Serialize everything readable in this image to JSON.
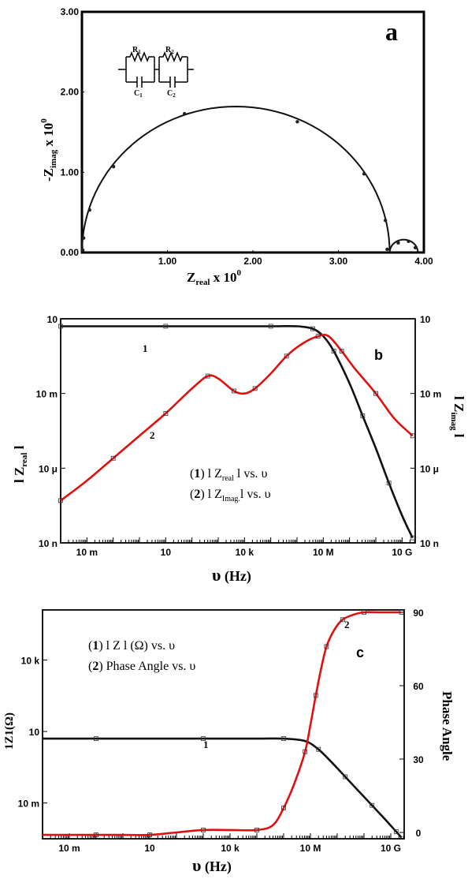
{
  "colors": {
    "curve1": "#111111",
    "curve2": "#e01010",
    "frame": "#000000",
    "markers": "#222222"
  },
  "chart_data": [
    {
      "panel_label": "a",
      "type": "scatter",
      "xlabel_main": "Z",
      "xlabel_sub": "real",
      "xlabel_rest": " x 10",
      "xlabel_sup": "0",
      "ylabel_main": "-Z",
      "ylabel_sub": "imag",
      "ylabel_rest": " x 10",
      "ylabel_sup": "0",
      "xlim": [
        0,
        4.0
      ],
      "ylim": [
        0,
        3.0
      ],
      "x_ticks": [
        "1.00",
        "2.00",
        "3.00",
        "4.00"
      ],
      "x_tick_values": [
        1,
        2,
        3,
        4
      ],
      "y_ticks": [
        "0.00",
        "1.00",
        "2.00",
        "3.00"
      ],
      "y_tick_values": [
        0,
        1,
        2,
        3
      ],
      "circuit_labels": [
        "R",
        "1",
        "R",
        "2",
        "C",
        "1",
        "C",
        "2"
      ],
      "arc1": {
        "x_start": 0.0,
        "x_end": 3.6,
        "peak": 1.82
      },
      "arc2": {
        "x_start": 3.6,
        "x_end": 3.93,
        "peak": 0.16
      },
      "points": [
        [
          0.01,
          0.03
        ],
        [
          0.02,
          0.18
        ],
        [
          0.09,
          0.53
        ],
        [
          0.37,
          1.07
        ],
        [
          1.2,
          1.73
        ],
        [
          2.52,
          1.63
        ],
        [
          3.3,
          0.98
        ],
        [
          3.55,
          0.4
        ],
        [
          3.57,
          0.04
        ],
        [
          3.7,
          0.12
        ],
        [
          3.82,
          0.14
        ],
        [
          3.9,
          0.06
        ]
      ]
    },
    {
      "panel_label": "b",
      "type": "line",
      "ylabel_left_main": "l Z",
      "ylabel_left_sub": "real",
      "ylabel_left_rest": " l",
      "ylabel_right_main": "l Z",
      "ylabel_right_sub": "imag",
      "ylabel_right_rest": " l",
      "xlabel_sym": "υ",
      "xlabel_rest": " (Hz)",
      "x_log_range": [
        -3,
        10.5
      ],
      "y_log_range": [
        -8,
        1
      ],
      "x_ticks": [
        "10 m",
        "10",
        "10 k",
        "10 M",
        "10 G"
      ],
      "x_tick_values": [
        -2,
        1,
        4,
        7,
        10
      ],
      "y_ticks": [
        "10",
        "10 m",
        "10 μ",
        "10 n"
      ],
      "y_tick_values": [
        1,
        -2,
        -5,
        -8
      ],
      "y_ticks_right": [
        "10",
        "10 m",
        "10 μ",
        "10 n"
      ],
      "legend": [
        {
          "num": "1",
          "pre": ") l Z",
          "sub": "real",
          "post": " l  vs.  υ"
        },
        {
          "num": "2",
          "pre": ") l Z",
          "sub": "Imag.",
          "post": "l  vs.  υ"
        }
      ],
      "curve_labels": [
        "1",
        "2"
      ],
      "series": [
        {
          "name": "1",
          "color": "#111111",
          "x": [
            -3,
            -1,
            1,
            3,
            5,
            6,
            6.6,
            7.0,
            7.4,
            8.0,
            8.5,
            9.0,
            9.5,
            10.0,
            10.4
          ],
          "y": [
            0.7,
            0.7,
            0.7,
            0.7,
            0.7,
            0.7,
            0.6,
            0.3,
            -0.3,
            -1.6,
            -2.9,
            -4.2,
            -5.6,
            -6.9,
            -7.8
          ]
        },
        {
          "name": "2",
          "color": "#e01010",
          "x": [
            -3,
            -2,
            -1,
            0,
            1,
            2,
            2.6,
            3.0,
            3.6,
            4.0,
            4.4,
            5.0,
            5.6,
            6.2,
            6.8,
            7.2,
            7.7,
            8.2,
            9.0,
            9.7,
            10.4
          ],
          "y": [
            -6.3,
            -5.5,
            -4.6,
            -3.7,
            -2.8,
            -1.8,
            -1.3,
            -1.4,
            -1.9,
            -2.0,
            -1.8,
            -1.2,
            -0.5,
            0.0,
            0.3,
            0.3,
            -0.3,
            -1.0,
            -2.0,
            -3.0,
            -3.7
          ]
        }
      ]
    },
    {
      "panel_label": "c",
      "type": "line",
      "ylabel_left": "1Z1(Ω)",
      "ylabel_right": "Phase Angle",
      "xlabel_sym": "υ",
      "xlabel_rest": " (Hz)",
      "x_log_range": [
        -3,
        10.5
      ],
      "y_left_log_range": [
        -3.5,
        6.1
      ],
      "y_right_range": [
        0,
        90
      ],
      "x_ticks": [
        "10 m",
        "10",
        "10 k",
        "10 M",
        "10 G"
      ],
      "x_tick_values": [
        -2,
        1,
        4,
        7,
        10
      ],
      "y_ticks": [
        "10 k",
        "10",
        "10 m"
      ],
      "y_tick_values": [
        4,
        1,
        -2
      ],
      "y_ticks_right": [
        "90",
        "60",
        "30",
        "0"
      ],
      "y_tick_values_right": [
        90,
        60,
        30,
        0
      ],
      "legend": [
        {
          "num": "1",
          "text": ")  l Z l (Ω) vs.  υ"
        },
        {
          "num": "2",
          "text": ")  Phase Angle vs. υ"
        }
      ],
      "curve_labels": [
        "1",
        "2"
      ],
      "series": [
        {
          "name": "1",
          "color": "#111111",
          "axis": "left",
          "x": [
            -3,
            -1,
            1,
            3,
            5,
            6,
            6.8,
            7.3,
            7.8,
            8.3,
            8.8,
            9.3,
            9.8,
            10.2,
            10.4
          ],
          "y": [
            0.7,
            0.7,
            0.7,
            0.7,
            0.7,
            0.7,
            0.6,
            0.25,
            -0.3,
            -0.9,
            -1.5,
            -2.1,
            -2.7,
            -3.2,
            -3.45
          ]
        },
        {
          "name": "2",
          "color": "#e01010",
          "axis": "right",
          "x": [
            -3,
            -1,
            0,
            1,
            2,
            3,
            4,
            5,
            5.6,
            6.0,
            6.4,
            6.8,
            7.0,
            7.2,
            7.4,
            7.6,
            7.9,
            8.2,
            8.6,
            9.0,
            9.6,
            10.4
          ],
          "y": [
            -1,
            -1,
            -1,
            -1,
            0,
            1,
            1,
            1,
            3,
            10,
            20,
            33,
            44,
            56,
            67,
            76,
            83,
            87,
            89,
            90,
            90,
            90
          ]
        }
      ]
    }
  ]
}
